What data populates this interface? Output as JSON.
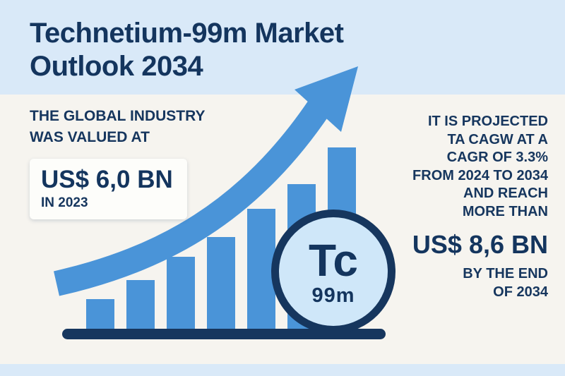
{
  "colors": {
    "header_bg": "#d9e9f8",
    "page_bg": "#f6f4ef",
    "navy": "#16365e",
    "bar_blue": "#4a94d8",
    "circle_fill": "#cfe7f9",
    "card_bg": "#fdfdfa"
  },
  "header": {
    "title_line1": "Technetium-99m Market",
    "title_line2": "Outlook 2034"
  },
  "left_panel": {
    "intro_line1": "THE GLOBAL INDUSTRY",
    "intro_line2": "WAS VALUED AT",
    "value": "US$ 6,0 BN",
    "value_caption": "IN 2023"
  },
  "right_panel": {
    "lines": [
      "IT IS PROJECTED",
      "TA CAGW AT A",
      "CAGR OF 3.3%",
      "FROM 2024 TO 2034",
      "AND REACH",
      "MORE THAN"
    ],
    "value": "US$ 8,6 BN",
    "caption_line1": "BY THE END",
    "caption_line2": "OF 2034"
  },
  "element_badge": {
    "symbol": "Tc",
    "mass": "99m"
  },
  "chart_data": {
    "type": "bar",
    "categories": [
      "",
      "",
      "",
      "",
      "",
      "",
      ""
    ],
    "values": [
      43,
      70,
      103,
      131,
      171,
      206,
      258
    ],
    "title": "Unlabeled ascending bar trend (market growth from US$ 6,0 BN in 2023 to US$ 8,6 BN by 2034)",
    "xlabel": "",
    "ylabel": "",
    "ylim": [
      0,
      280
    ],
    "grid": false,
    "legend": false,
    "annotations": [
      "upward growth arrow overlay",
      "Tc 99m element badge overlay"
    ]
  }
}
